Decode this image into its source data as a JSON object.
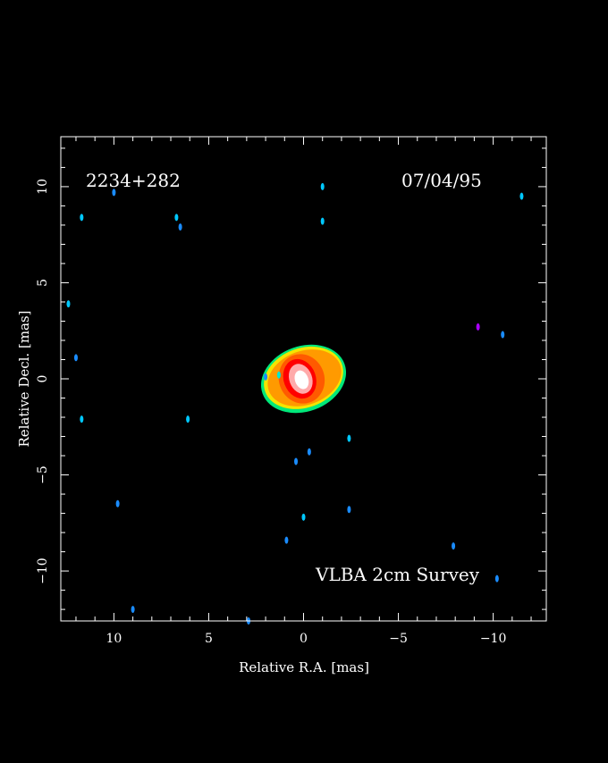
{
  "chart_data": {
    "type": "heatmap",
    "source_name": "2234+282",
    "date": "07/04/95",
    "survey_label": "VLBA 2cm Survey",
    "xlabel": "Relative R.A. [mas]",
    "ylabel": "Relative Decl. [mas]",
    "xlim": [
      12.8,
      -12.8
    ],
    "ylim": [
      -12.6,
      12.6
    ],
    "x_tick_labels": [
      {
        "value": 10,
        "label": "10"
      },
      {
        "value": 5,
        "label": "5"
      },
      {
        "value": 0,
        "label": "0"
      },
      {
        "value": -5,
        "label": "−5"
      },
      {
        "value": -10,
        "label": "−10"
      }
    ],
    "y_tick_labels": [
      {
        "value": 10,
        "label": "10"
      },
      {
        "value": 5,
        "label": "5"
      },
      {
        "value": 0,
        "label": "0"
      },
      {
        "value": -5,
        "label": "−5"
      },
      {
        "value": -10,
        "label": "−10"
      }
    ],
    "background": "#000000",
    "frame_color": "#ffffff",
    "core": [
      {
        "x": 0.0,
        "y": 0.0,
        "rx": 2.3,
        "ry": 1.7,
        "color": "#00e87a"
      },
      {
        "x": 0.0,
        "y": 0.05,
        "rx": 2.15,
        "ry": 1.55,
        "color": "#f5e400"
      },
      {
        "x": -0.05,
        "y": 0.05,
        "rx": 2.0,
        "ry": 1.4,
        "color": "#ff9a00"
      },
      {
        "x": 0.1,
        "y": 0.0,
        "rx": 1.2,
        "ry": 1.3,
        "color": "#ff5a00"
      },
      {
        "x": 0.2,
        "y": 0.0,
        "rx": 0.85,
        "ry": 1.05,
        "color": "#ff0000"
      },
      {
        "x": 0.15,
        "y": 0.0,
        "rx": 0.6,
        "ry": 0.8,
        "color": "#ffaaaa"
      },
      {
        "x": 0.1,
        "y": -0.05,
        "rx": 0.35,
        "ry": 0.5,
        "color": "#ffffff"
      }
    ],
    "speckles": [
      {
        "x": 10.0,
        "y": 9.7,
        "color": "#1a8cff"
      },
      {
        "x": 11.7,
        "y": 8.4,
        "color": "#00c8ff"
      },
      {
        "x": 6.7,
        "y": 8.4,
        "color": "#00c8ff"
      },
      {
        "x": 6.5,
        "y": 7.9,
        "color": "#1a8cff"
      },
      {
        "x": -1.0,
        "y": 10.0,
        "color": "#00c8ff"
      },
      {
        "x": -1.0,
        "y": 8.2,
        "color": "#00c8ff"
      },
      {
        "x": -11.5,
        "y": 9.5,
        "color": "#00c8ff"
      },
      {
        "x": 12.4,
        "y": 3.9,
        "color": "#00c8ff"
      },
      {
        "x": 12.0,
        "y": 1.1,
        "color": "#1a8cff"
      },
      {
        "x": 11.7,
        "y": -2.1,
        "color": "#00c8ff"
      },
      {
        "x": 6.1,
        "y": -2.1,
        "color": "#00c8ff"
      },
      {
        "x": 2.0,
        "y": 0.1,
        "color": "#1a8cff"
      },
      {
        "x": 1.3,
        "y": 0.2,
        "color": "#00e8d0"
      },
      {
        "x": -2.4,
        "y": -3.1,
        "color": "#00c8ff"
      },
      {
        "x": 0.4,
        "y": -4.3,
        "color": "#1a8cff"
      },
      {
        "x": -0.3,
        "y": -3.8,
        "color": "#1a8cff"
      },
      {
        "x": 9.8,
        "y": -6.5,
        "color": "#1a8cff"
      },
      {
        "x": 0.0,
        "y": -7.2,
        "color": "#00c8ff"
      },
      {
        "x": -2.4,
        "y": -6.8,
        "color": "#1a8cff"
      },
      {
        "x": 0.9,
        "y": -8.4,
        "color": "#1a8cff"
      },
      {
        "x": -7.9,
        "y": -8.7,
        "color": "#1a8cff"
      },
      {
        "x": 9.0,
        "y": -12.0,
        "color": "#1a8cff"
      },
      {
        "x": -9.2,
        "y": 2.7,
        "color": "#aa00ff"
      },
      {
        "x": -10.5,
        "y": 2.3,
        "color": "#1a8cff"
      },
      {
        "x": -10.2,
        "y": -10.4,
        "color": "#1a8cff"
      },
      {
        "x": 2.9,
        "y": -12.6,
        "color": "#1a8cff"
      }
    ]
  }
}
